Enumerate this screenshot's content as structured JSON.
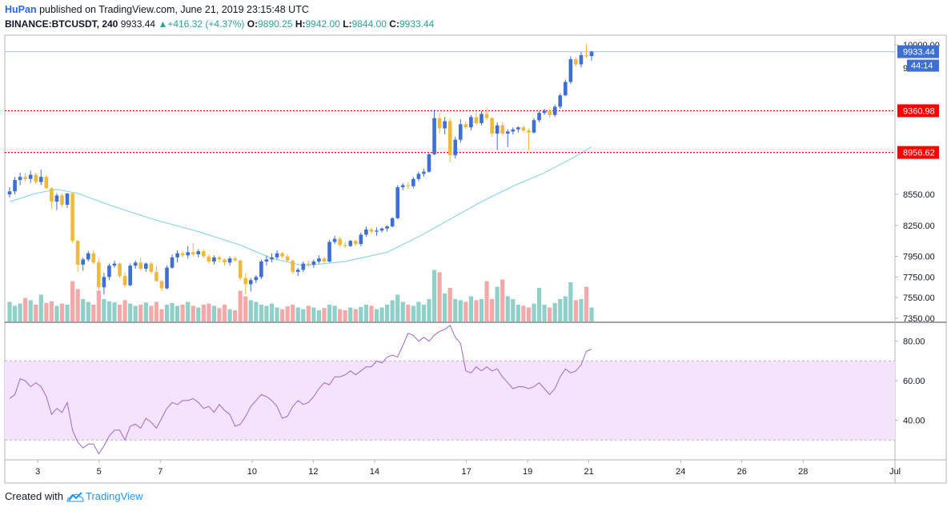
{
  "header": {
    "author": "HuPan",
    "published": "published on TradingView.com, June 21, 2019 23:15:48 UTC",
    "symbol": "BINANCE:BTCUSDT, 240",
    "last": "9933.44",
    "change": "+416.32 (+4.37%)",
    "o_label": "O:",
    "o_value": "9890.25",
    "h_label": "H:",
    "h_value": "9942.00",
    "l_label": "L:",
    "l_value": "9844.00",
    "c_label": "C:",
    "c_value": "9933.44"
  },
  "footer": {
    "created_with": "Created with",
    "brand": "TradingView"
  },
  "colors": {
    "up": "#3d6fd4",
    "down": "#f0b93c",
    "ma": "#8ed6e8",
    "rsi": "#a365d0",
    "rsi_band": "#f3e4fb",
    "hline": "#ff0000",
    "vol_up": "#8fd0c8",
    "vol_down": "#f4a8a8",
    "price_tag": "#3d6fd4"
  },
  "chart_data": {
    "type": "candlestick",
    "price_axis": {
      "min": 7350,
      "max": 10000,
      "ticks": [
        10000,
        8550,
        8250,
        7950,
        7750,
        7550,
        7350
      ],
      "tick_labels": [
        "10000.00",
        "8550.00",
        "8250.00",
        "7950.00",
        "7750.00",
        "7550.00",
        "7350.00"
      ],
      "partial_label": "9"
    },
    "rsi_axis": {
      "min": 20,
      "max": 90,
      "ticks": [
        80,
        60,
        40
      ],
      "tick_labels": [
        "80.00",
        "60.00",
        "40.00"
      ],
      "band": [
        30,
        70
      ]
    },
    "x_axis": {
      "start_day": 2.0,
      "end_day": 31.0,
      "ticks": [
        3,
        5,
        7,
        10,
        12,
        14,
        17,
        19,
        21,
        24,
        26,
        28,
        31
      ],
      "tick_labels": [
        "3",
        "5",
        "7",
        "10",
        "12",
        "14",
        "17",
        "19",
        "21",
        "24",
        "26",
        "28",
        "Jul"
      ]
    },
    "horizontal_lines": [
      {
        "value": 9360.98,
        "label": "9360.98"
      },
      {
        "value": 8956.62,
        "label": "8956.62"
      }
    ],
    "last_price": {
      "value": 9933.44,
      "label": "9933.44",
      "countdown": "44:14"
    },
    "candles": [
      {
        "o": 8550,
        "h": 8620,
        "l": 8520,
        "c": 8580
      },
      {
        "o": 8580,
        "h": 8720,
        "l": 8550,
        "c": 8690
      },
      {
        "o": 8690,
        "h": 8760,
        "l": 8640,
        "c": 8720
      },
      {
        "o": 8720,
        "h": 8760,
        "l": 8670,
        "c": 8700
      },
      {
        "o": 8700,
        "h": 8780,
        "l": 8660,
        "c": 8740
      },
      {
        "o": 8740,
        "h": 8760,
        "l": 8650,
        "c": 8670
      },
      {
        "o": 8670,
        "h": 8790,
        "l": 8640,
        "c": 8720
      },
      {
        "o": 8720,
        "h": 8740,
        "l": 8600,
        "c": 8610
      },
      {
        "o": 8610,
        "h": 8620,
        "l": 8410,
        "c": 8480
      },
      {
        "o": 8480,
        "h": 8560,
        "l": 8400,
        "c": 8540
      },
      {
        "o": 8540,
        "h": 8560,
        "l": 8430,
        "c": 8450
      },
      {
        "o": 8450,
        "h": 8560,
        "l": 8420,
        "c": 8560
      },
      {
        "o": 8560,
        "h": 8570,
        "l": 8080,
        "c": 8100
      },
      {
        "o": 8100,
        "h": 8110,
        "l": 7800,
        "c": 7870
      },
      {
        "o": 7870,
        "h": 7940,
        "l": 7810,
        "c": 7920
      },
      {
        "o": 7920,
        "h": 8000,
        "l": 7900,
        "c": 7980
      },
      {
        "o": 7980,
        "h": 8010,
        "l": 7870,
        "c": 7890
      },
      {
        "o": 7890,
        "h": 7930,
        "l": 7600,
        "c": 7650
      },
      {
        "o": 7650,
        "h": 7790,
        "l": 7580,
        "c": 7750
      },
      {
        "o": 7750,
        "h": 7880,
        "l": 7720,
        "c": 7860
      },
      {
        "o": 7860,
        "h": 7910,
        "l": 7840,
        "c": 7880
      },
      {
        "o": 7880,
        "h": 7890,
        "l": 7740,
        "c": 7760
      },
      {
        "o": 7760,
        "h": 7800,
        "l": 7650,
        "c": 7670
      },
      {
        "o": 7670,
        "h": 7880,
        "l": 7660,
        "c": 7860
      },
      {
        "o": 7860,
        "h": 7910,
        "l": 7830,
        "c": 7890
      },
      {
        "o": 7890,
        "h": 7940,
        "l": 7810,
        "c": 7830
      },
      {
        "o": 7830,
        "h": 7890,
        "l": 7800,
        "c": 7880
      },
      {
        "o": 7880,
        "h": 7900,
        "l": 7780,
        "c": 7800
      },
      {
        "o": 7800,
        "h": 7860,
        "l": 7700,
        "c": 7710
      },
      {
        "o": 7710,
        "h": 7720,
        "l": 7610,
        "c": 7640
      },
      {
        "o": 7640,
        "h": 7860,
        "l": 7630,
        "c": 7840
      },
      {
        "o": 7840,
        "h": 7970,
        "l": 7830,
        "c": 7940
      },
      {
        "o": 7940,
        "h": 8010,
        "l": 7890,
        "c": 7980
      },
      {
        "o": 7980,
        "h": 8000,
        "l": 7940,
        "c": 7960
      },
      {
        "o": 7960,
        "h": 8050,
        "l": 7930,
        "c": 7990
      },
      {
        "o": 7990,
        "h": 8080,
        "l": 7950,
        "c": 7970
      },
      {
        "o": 7970,
        "h": 8020,
        "l": 7940,
        "c": 8000
      },
      {
        "o": 8000,
        "h": 8020,
        "l": 7930,
        "c": 7950
      },
      {
        "o": 7950,
        "h": 7970,
        "l": 7880,
        "c": 7900
      },
      {
        "o": 7900,
        "h": 7960,
        "l": 7870,
        "c": 7940
      },
      {
        "o": 7940,
        "h": 7960,
        "l": 7890,
        "c": 7920
      },
      {
        "o": 7920,
        "h": 7930,
        "l": 7860,
        "c": 7890
      },
      {
        "o": 7890,
        "h": 7950,
        "l": 7860,
        "c": 7930
      },
      {
        "o": 7930,
        "h": 7950,
        "l": 7900,
        "c": 7910
      },
      {
        "o": 7910,
        "h": 7920,
        "l": 7720,
        "c": 7740
      },
      {
        "o": 7740,
        "h": 7790,
        "l": 7580,
        "c": 7680
      },
      {
        "o": 7680,
        "h": 7740,
        "l": 7610,
        "c": 7720
      },
      {
        "o": 7720,
        "h": 7770,
        "l": 7690,
        "c": 7750
      },
      {
        "o": 7750,
        "h": 7920,
        "l": 7730,
        "c": 7900
      },
      {
        "o": 7900,
        "h": 7960,
        "l": 7860,
        "c": 7920
      },
      {
        "o": 7920,
        "h": 7980,
        "l": 7890,
        "c": 7940
      },
      {
        "o": 7940,
        "h": 8010,
        "l": 7920,
        "c": 7980
      },
      {
        "o": 7980,
        "h": 7990,
        "l": 7930,
        "c": 7950
      },
      {
        "o": 7950,
        "h": 7970,
        "l": 7890,
        "c": 7910
      },
      {
        "o": 7910,
        "h": 7920,
        "l": 7780,
        "c": 7800
      },
      {
        "o": 7800,
        "h": 7840,
        "l": 7760,
        "c": 7820
      },
      {
        "o": 7820,
        "h": 7900,
        "l": 7800,
        "c": 7880
      },
      {
        "o": 7880,
        "h": 7910,
        "l": 7850,
        "c": 7870
      },
      {
        "o": 7870,
        "h": 7920,
        "l": 7840,
        "c": 7900
      },
      {
        "o": 7900,
        "h": 7960,
        "l": 7880,
        "c": 7930
      },
      {
        "o": 7930,
        "h": 7950,
        "l": 7880,
        "c": 7900
      },
      {
        "o": 7900,
        "h": 8110,
        "l": 7890,
        "c": 8090
      },
      {
        "o": 8090,
        "h": 8150,
        "l": 8070,
        "c": 8120
      },
      {
        "o": 8120,
        "h": 8140,
        "l": 8040,
        "c": 8060
      },
      {
        "o": 8060,
        "h": 8090,
        "l": 8030,
        "c": 8050
      },
      {
        "o": 8050,
        "h": 8110,
        "l": 8040,
        "c": 8100
      },
      {
        "o": 8100,
        "h": 8110,
        "l": 8050,
        "c": 8070
      },
      {
        "o": 8070,
        "h": 8180,
        "l": 8050,
        "c": 8160
      },
      {
        "o": 8160,
        "h": 8240,
        "l": 8140,
        "c": 8210
      },
      {
        "o": 8210,
        "h": 8230,
        "l": 8170,
        "c": 8190
      },
      {
        "o": 8190,
        "h": 8230,
        "l": 8150,
        "c": 8200
      },
      {
        "o": 8200,
        "h": 8230,
        "l": 8180,
        "c": 8220
      },
      {
        "o": 8220,
        "h": 8250,
        "l": 8190,
        "c": 8240
      },
      {
        "o": 8240,
        "h": 8330,
        "l": 8230,
        "c": 8320
      },
      {
        "o": 8320,
        "h": 8640,
        "l": 8310,
        "c": 8620
      },
      {
        "o": 8620,
        "h": 8660,
        "l": 8590,
        "c": 8640
      },
      {
        "o": 8640,
        "h": 8670,
        "l": 8600,
        "c": 8630
      },
      {
        "o": 8630,
        "h": 8720,
        "l": 8610,
        "c": 8700
      },
      {
        "o": 8700,
        "h": 8770,
        "l": 8680,
        "c": 8750
      },
      {
        "o": 8750,
        "h": 8800,
        "l": 8720,
        "c": 8770
      },
      {
        "o": 8770,
        "h": 8950,
        "l": 8760,
        "c": 8940
      },
      {
        "o": 8940,
        "h": 9370,
        "l": 8930,
        "c": 9290
      },
      {
        "o": 9290,
        "h": 9340,
        "l": 9140,
        "c": 9190
      },
      {
        "o": 9190,
        "h": 9300,
        "l": 9130,
        "c": 9260
      },
      {
        "o": 9260,
        "h": 9290,
        "l": 8860,
        "c": 8930
      },
      {
        "o": 8930,
        "h": 9110,
        "l": 8900,
        "c": 9080
      },
      {
        "o": 9080,
        "h": 9280,
        "l": 9050,
        "c": 9230
      },
      {
        "o": 9230,
        "h": 9260,
        "l": 9180,
        "c": 9200
      },
      {
        "o": 9200,
        "h": 9320,
        "l": 9170,
        "c": 9300
      },
      {
        "o": 9300,
        "h": 9340,
        "l": 9220,
        "c": 9240
      },
      {
        "o": 9240,
        "h": 9360,
        "l": 9220,
        "c": 9330
      },
      {
        "o": 9330,
        "h": 9390,
        "l": 9270,
        "c": 9290
      },
      {
        "o": 9290,
        "h": 9300,
        "l": 9110,
        "c": 9140
      },
      {
        "o": 9140,
        "h": 9250,
        "l": 8980,
        "c": 9220
      },
      {
        "o": 9220,
        "h": 9250,
        "l": 9120,
        "c": 9140
      },
      {
        "o": 9140,
        "h": 9180,
        "l": 9010,
        "c": 9160
      },
      {
        "o": 9160,
        "h": 9200,
        "l": 9130,
        "c": 9180
      },
      {
        "o": 9180,
        "h": 9210,
        "l": 9150,
        "c": 9200
      },
      {
        "o": 9200,
        "h": 9220,
        "l": 9150,
        "c": 9170
      },
      {
        "o": 9170,
        "h": 9190,
        "l": 8980,
        "c": 9150
      },
      {
        "o": 9150,
        "h": 9290,
        "l": 9140,
        "c": 9270
      },
      {
        "o": 9270,
        "h": 9360,
        "l": 9250,
        "c": 9340
      },
      {
        "o": 9340,
        "h": 9380,
        "l": 9320,
        "c": 9360
      },
      {
        "o": 9360,
        "h": 9390,
        "l": 9290,
        "c": 9320
      },
      {
        "o": 9320,
        "h": 9420,
        "l": 9300,
        "c": 9400
      },
      {
        "o": 9400,
        "h": 9530,
        "l": 9380,
        "c": 9510
      },
      {
        "o": 9510,
        "h": 9660,
        "l": 9500,
        "c": 9640
      },
      {
        "o": 9640,
        "h": 9890,
        "l": 9620,
        "c": 9860
      },
      {
        "o": 9860,
        "h": 9880,
        "l": 9790,
        "c": 9810
      },
      {
        "o": 9810,
        "h": 9930,
        "l": 9780,
        "c": 9900
      },
      {
        "o": 9900,
        "h": 10010,
        "l": 9870,
        "c": 9890
      },
      {
        "o": 9890,
        "h": 9942,
        "l": 9844,
        "c": 9933.44
      }
    ],
    "volumes": [
      0.35,
      0.28,
      0.32,
      0.42,
      0.38,
      0.3,
      0.48,
      0.33,
      0.36,
      0.28,
      0.32,
      0.3,
      0.72,
      0.58,
      0.4,
      0.35,
      0.3,
      0.55,
      0.4,
      0.36,
      0.34,
      0.3,
      0.38,
      0.32,
      0.28,
      0.3,
      0.34,
      0.28,
      0.35,
      0.22,
      0.3,
      0.33,
      0.28,
      0.3,
      0.35,
      0.28,
      0.25,
      0.3,
      0.32,
      0.28,
      0.24,
      0.3,
      0.22,
      0.2,
      0.55,
      0.45,
      0.38,
      0.35,
      0.3,
      0.28,
      0.32,
      0.25,
      0.22,
      0.27,
      0.3,
      0.25,
      0.22,
      0.28,
      0.25,
      0.2,
      0.24,
      0.3,
      0.28,
      0.22,
      0.2,
      0.25,
      0.22,
      0.26,
      0.3,
      0.28,
      0.22,
      0.25,
      0.3,
      0.38,
      0.48,
      0.35,
      0.3,
      0.28,
      0.35,
      0.3,
      0.4,
      0.92,
      0.88,
      0.5,
      0.6,
      0.4,
      0.38,
      0.35,
      0.45,
      0.38,
      0.4,
      0.72,
      0.4,
      0.62,
      0.75,
      0.45,
      0.4,
      0.3,
      0.28,
      0.25,
      0.32,
      0.6,
      0.3,
      0.25,
      0.33,
      0.4,
      0.45,
      0.7,
      0.38,
      0.4,
      0.62,
      0.25
    ],
    "ma": [
      [
        0,
        8480
      ],
      [
        5,
        8560
      ],
      [
        9,
        8600
      ],
      [
        13,
        8560
      ],
      [
        20,
        8430
      ],
      [
        28,
        8300
      ],
      [
        36,
        8190
      ],
      [
        44,
        8060
      ],
      [
        50,
        7930
      ],
      [
        56,
        7860
      ],
      [
        64,
        7900
      ],
      [
        72,
        7990
      ],
      [
        78,
        8140
      ],
      [
        84,
        8310
      ],
      [
        90,
        8480
      ],
      [
        96,
        8630
      ],
      [
        102,
        8760
      ],
      [
        108,
        8920
      ],
      [
        111,
        9010
      ]
    ],
    "rsi": [
      51,
      53,
      61,
      60,
      57,
      59,
      57,
      52,
      43,
      46,
      44,
      49,
      35,
      29,
      26,
      28,
      28,
      23,
      27,
      32,
      35,
      35,
      30,
      37,
      38,
      36,
      41,
      39,
      36,
      41,
      46,
      49,
      48,
      50,
      50,
      51,
      49,
      46,
      47,
      44,
      48,
      45,
      43,
      37,
      38,
      42,
      47,
      50,
      53,
      52,
      50,
      47,
      41,
      42,
      47,
      50,
      48,
      49,
      52,
      56,
      59,
      58,
      62,
      62,
      63,
      65,
      63,
      65,
      67,
      67,
      70,
      69,
      72,
      73,
      72,
      78,
      84,
      83,
      80,
      82,
      80,
      83,
      85,
      86,
      88,
      82,
      79,
      65,
      64,
      67,
      65,
      67,
      65,
      66,
      62,
      59,
      56,
      57,
      57,
      56,
      57,
      59,
      56,
      53,
      56,
      62,
      66,
      64,
      65,
      68,
      75,
      76
    ]
  }
}
